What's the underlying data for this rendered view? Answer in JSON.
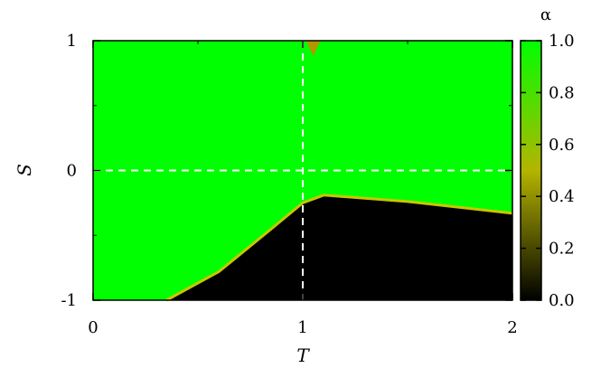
{
  "chart_data": {
    "type": "heatmap",
    "title": "",
    "xlabel": "T",
    "ylabel": "S",
    "xlim": [
      0,
      2
    ],
    "ylim": [
      -1,
      1
    ],
    "x_ticks": [
      "0",
      "1",
      "2"
    ],
    "y_ticks": [
      "-1",
      "0",
      "1"
    ],
    "colorbar": {
      "label": "α",
      "range": [
        0,
        1
      ],
      "ticks": [
        "0.0",
        "0.2",
        "0.4",
        "0.6",
        "0.8",
        "1.0"
      ],
      "colors": {
        "low": "#000000",
        "mid": "#b4b400",
        "high": "#00ff00"
      }
    },
    "reference_lines": [
      {
        "orientation": "vertical",
        "value": 1,
        "style": "dashed",
        "color": "#ffffff"
      },
      {
        "orientation": "horizontal",
        "value": 0,
        "style": "dashed",
        "color": "#ffffff"
      }
    ],
    "regions": [
      {
        "alpha": 1.0,
        "description_value": "high"
      },
      {
        "alpha": 0.0,
        "description_value": "low"
      }
    ],
    "boundary": [
      {
        "T": 0.35,
        "S": -1.0
      },
      {
        "T": 0.6,
        "S": -0.78
      },
      {
        "T": 0.85,
        "S": -0.45
      },
      {
        "T": 1.0,
        "S": -0.25
      },
      {
        "T": 1.1,
        "S": -0.19
      },
      {
        "T": 1.5,
        "S": -0.24
      },
      {
        "T": 2.0,
        "S": -0.33
      }
    ]
  }
}
